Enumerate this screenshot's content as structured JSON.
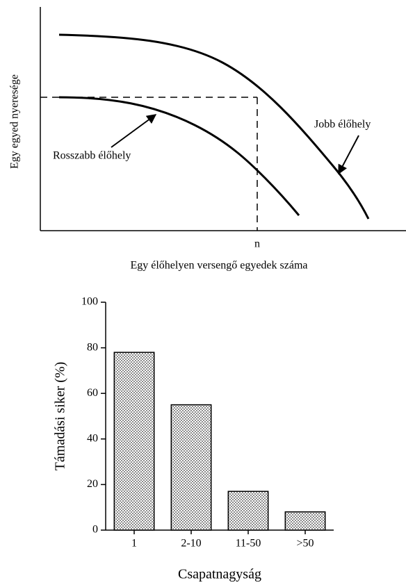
{
  "chart_data": [
    {
      "type": "diagram",
      "xlabel": "Egy élőhelyen versengő egyedek száma",
      "ylabel": "Egy egyed nyeresége",
      "xtick_label": "n",
      "annotations": [
        "Rosszabb élőhely",
        "Jobb élőhely"
      ]
    },
    {
      "type": "bar",
      "categories": [
        "1",
        "2-10",
        "11-50",
        ">50"
      ],
      "values": [
        78,
        55,
        17,
        8
      ],
      "xlabel": "Csapatnagyság",
      "ylabel": "Támadási siker (%)",
      "ylim": [
        0,
        100
      ],
      "yticks": [
        0,
        20,
        40,
        60,
        80,
        100
      ],
      "color": "#000000"
    }
  ]
}
